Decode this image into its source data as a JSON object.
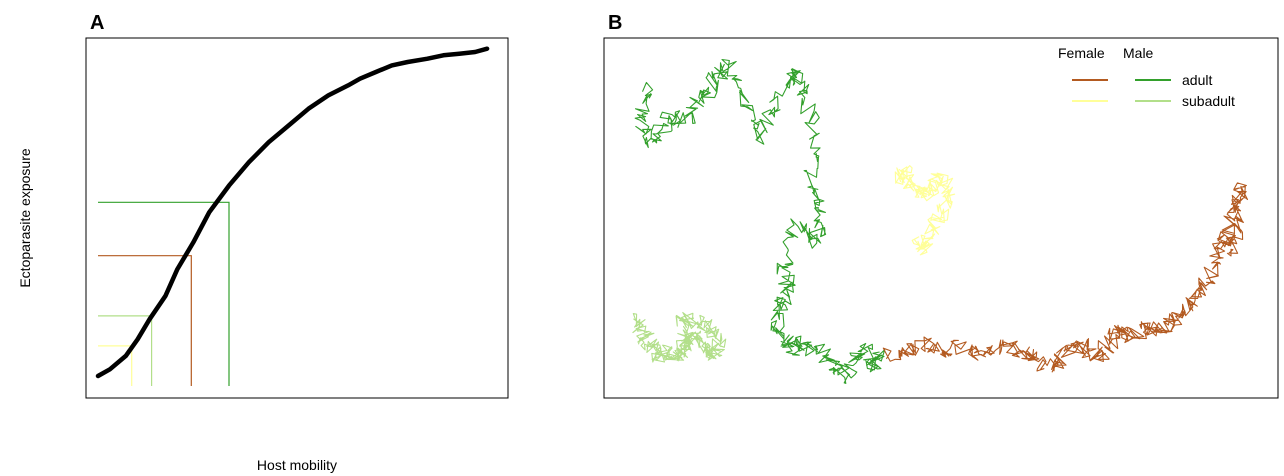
{
  "colors": {
    "female_adult": "#B35A20",
    "female_subadult": "#FFFF99",
    "male_adult": "#33A02C",
    "male_subadult": "#B2DF8A",
    "curve": "#000000"
  },
  "chart_data": [
    {
      "panel": "A",
      "type": "line",
      "xlabel": "Host mobility",
      "ylabel": "Ectoparasite exposure",
      "ticks": false,
      "curve": {
        "x": [
          0.0,
          0.03,
          0.07,
          0.1,
          0.13,
          0.17,
          0.2,
          0.24,
          0.28,
          0.33,
          0.38,
          0.43,
          0.48,
          0.53,
          0.58,
          0.63,
          0.66,
          0.7,
          0.74,
          0.78,
          0.83,
          0.87,
          0.91,
          0.95,
          0.98
        ],
        "y": [
          0.03,
          0.05,
          0.09,
          0.14,
          0.2,
          0.27,
          0.35,
          0.43,
          0.52,
          0.6,
          0.67,
          0.73,
          0.78,
          0.83,
          0.87,
          0.9,
          0.92,
          0.94,
          0.96,
          0.97,
          0.98,
          0.99,
          0.995,
          1.0,
          1.01
        ]
      },
      "markers": [
        {
          "group": "female_subadult",
          "x": 0.085,
          "y": 0.12
        },
        {
          "group": "male_subadult",
          "x": 0.135,
          "y": 0.21
        },
        {
          "group": "female_adult",
          "x": 0.235,
          "y": 0.39
        },
        {
          "group": "male_adult",
          "x": 0.33,
          "y": 0.55
        }
      ]
    },
    {
      "panel": "B",
      "type": "line",
      "legend": {
        "position": "top-right",
        "headers": [
          "Female",
          "Male"
        ],
        "rows": [
          "adult",
          "subadult"
        ]
      },
      "series": [
        {
          "group": "male_adult",
          "x": [
            0.08,
            0.05,
            0.07,
            0.1,
            0.14,
            0.17,
            0.2,
            0.23,
            0.26,
            0.29,
            0.32,
            0.36,
            0.4,
            0.44,
            0.47,
            0.49,
            0.51,
            0.5,
            0.52,
            0.53,
            0.5,
            0.46,
            0.43,
            0.44,
            0.42,
            0.41,
            0.43,
            0.45,
            0.48,
            0.52,
            0.56,
            0.58,
            0.61,
            0.64,
            0.66,
            0.68
          ],
          "y": [
            0.1,
            0.2,
            0.3,
            0.26,
            0.2,
            0.22,
            0.14,
            0.13,
            0.06,
            0.04,
            0.14,
            0.28,
            0.18,
            0.08,
            0.07,
            0.15,
            0.28,
            0.42,
            0.5,
            0.58,
            0.62,
            0.56,
            0.7,
            0.78,
            0.83,
            0.91,
            0.94,
            0.98,
            0.96,
            0.99,
            1.02,
            1.08,
            1.03,
            0.98,
            1.05,
            0.99
          ]
        },
        {
          "group": "female_adult",
          "x": [
            0.7,
            0.75,
            0.8,
            0.84,
            0.89,
            0.93,
            0.98,
            1.02,
            1.06,
            1.09,
            1.13,
            1.16,
            1.2,
            1.23,
            1.26,
            1.29,
            1.32,
            1.34,
            1.37,
            1.4,
            1.43,
            1.46,
            1.49,
            1.51,
            1.54,
            1.56,
            1.58,
            1.6,
            1.61,
            1.63,
            1.62,
            1.61,
            1.59
          ],
          "y": [
            1.0,
            0.99,
            0.96,
            0.99,
            0.97,
            1.0,
            0.98,
            0.97,
            0.99,
            1.02,
            1.04,
            1.0,
            0.96,
            0.99,
            1.0,
            0.94,
            0.92,
            0.94,
            0.91,
            0.92,
            0.9,
            0.88,
            0.83,
            0.79,
            0.75,
            0.68,
            0.62,
            0.56,
            0.5,
            0.44,
            0.52,
            0.6,
            0.66
          ]
        },
        {
          "group": "female_subadult",
          "x": [
            0.73,
            0.75,
            0.76,
            0.78,
            0.8,
            0.82,
            0.84,
            0.86,
            0.85,
            0.83,
            0.81,
            0.8,
            0.78
          ],
          "y": [
            0.41,
            0.39,
            0.43,
            0.46,
            0.47,
            0.44,
            0.41,
            0.45,
            0.5,
            0.55,
            0.61,
            0.65,
            0.62
          ]
        },
        {
          "group": "male_subadult",
          "x": [
            0.04,
            0.06,
            0.07,
            0.09,
            0.1,
            0.12,
            0.14,
            0.16,
            0.18,
            0.2,
            0.22,
            0.24,
            0.25,
            0.26,
            0.24,
            0.21,
            0.18,
            0.16,
            0.17,
            0.15
          ],
          "y": [
            0.87,
            0.92,
            0.95,
            0.98,
            1.0,
            0.98,
            1.01,
            0.98,
            0.95,
            0.94,
            0.97,
            0.99,
            1.0,
            0.96,
            0.92,
            0.9,
            0.88,
            0.9,
            0.96,
            1.02
          ]
        }
      ]
    }
  ]
}
